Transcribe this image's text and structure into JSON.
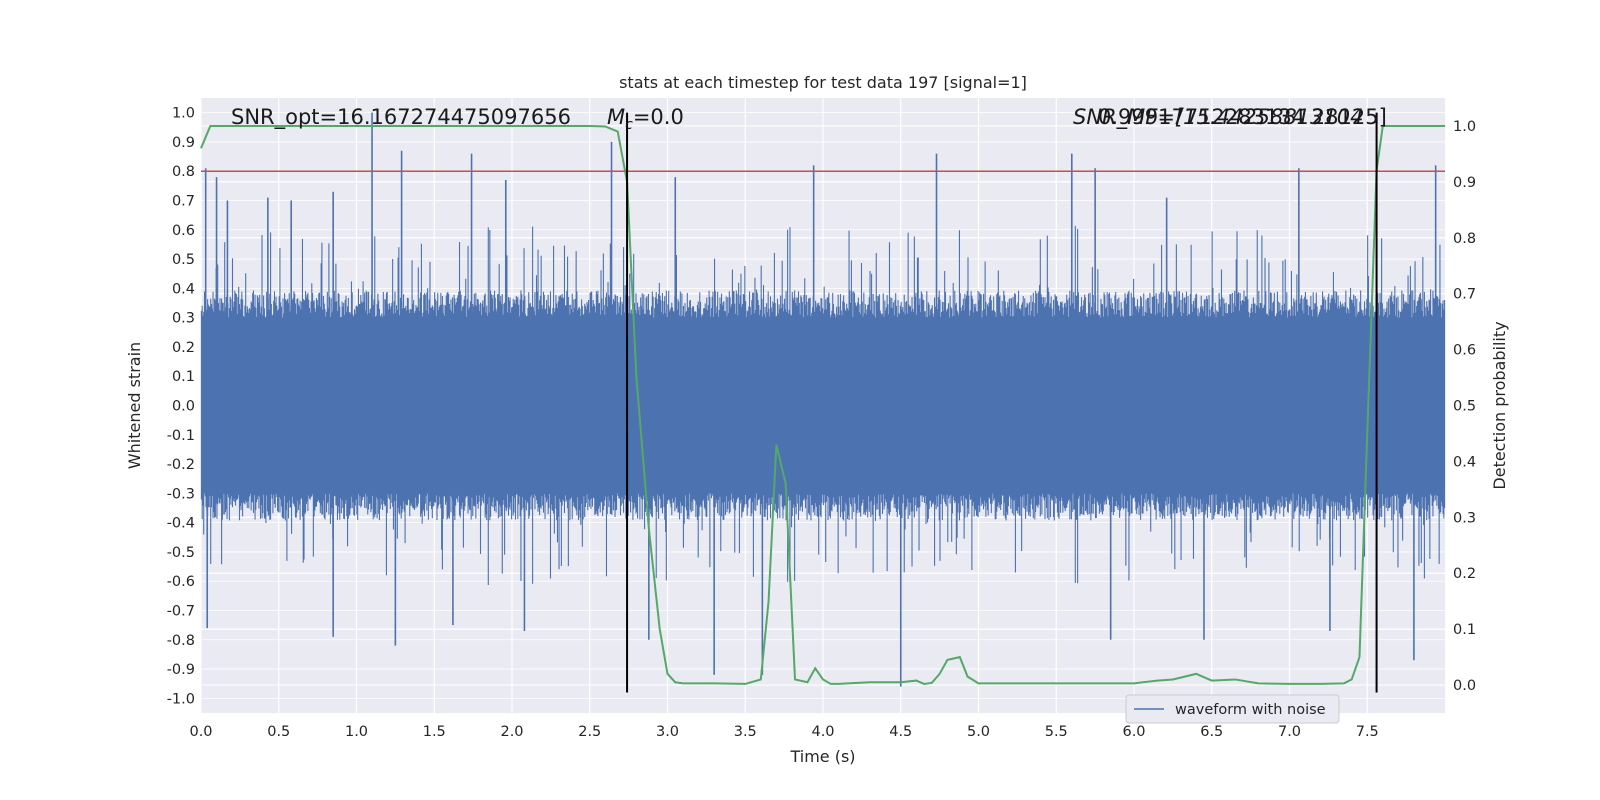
{
  "chart_data": {
    "type": "line",
    "title": "stats at each timestep for test data 197 [signal=1]",
    "xlabel": "Time (s)",
    "ylabel_left": "Whitened strain",
    "ylabel_right": "Detection probability",
    "xlim": [
      0.0,
      8.0
    ],
    "ylim_left": [
      -1.05,
      1.05
    ],
    "ylim_right": [
      -0.05,
      1.05
    ],
    "grid": true,
    "legend_position": "lower-right",
    "x_ticks": [
      "0.0",
      "0.5",
      "1.0",
      "1.5",
      "2.0",
      "2.5",
      "3.0",
      "3.5",
      "4.0",
      "4.5",
      "5.0",
      "5.5",
      "6.0",
      "6.5",
      "7.0",
      "7.5"
    ],
    "y_left_ticks": [
      "1.0",
      "0.9",
      "0.8",
      "0.7",
      "0.6",
      "0.5",
      "0.4",
      "0.3",
      "0.2",
      "0.1",
      "0.0",
      "-0.1",
      "-0.2",
      "-0.3",
      "-0.4",
      "-0.5",
      "-0.6",
      "-0.7",
      "-0.8",
      "-0.9",
      "-1.0"
    ],
    "y_right_ticks": [
      "1.0",
      "0.9",
      "0.8",
      "0.7",
      "0.6",
      "0.5",
      "0.4",
      "0.3",
      "0.2",
      "0.1",
      "0.0"
    ],
    "annotations": {
      "snr_opt": "SNR_opt=16.167274475097656",
      "mc": "=0.0",
      "mc_symbol": "M",
      "mc_sub": "c",
      "overlap_text_a": "SNR_MF=[15.44258813104",
      "overlap_text_b": "0.99917712283134 28125]"
    },
    "threshold": {
      "name": "threshold line",
      "value": 0.8,
      "color": "#c44e52"
    },
    "markers": [
      {
        "name": "signal-start-marker",
        "x": 2.74
      },
      {
        "name": "signal-end-marker",
        "x": 7.56
      }
    ],
    "series": [
      {
        "name": "waveform with noise",
        "axis": "left",
        "color": "#4c72b0",
        "style": "noisy band, typical envelope ±0.33, peaks to ±1.0",
        "spikes": [
          {
            "x": 0.03,
            "y": 0.81
          },
          {
            "x": 0.1,
            "y": 0.78
          },
          {
            "x": 0.17,
            "y": 0.7
          },
          {
            "x": 0.43,
            "y": 0.71
          },
          {
            "x": 0.58,
            "y": 0.7
          },
          {
            "x": 0.85,
            "y": 0.73
          },
          {
            "x": 1.1,
            "y": 1.0
          },
          {
            "x": 1.29,
            "y": 0.87
          },
          {
            "x": 1.74,
            "y": 0.86
          },
          {
            "x": 1.96,
            "y": 0.77
          },
          {
            "x": 2.64,
            "y": 0.9
          },
          {
            "x": 3.05,
            "y": 0.78
          },
          {
            "x": 3.94,
            "y": 0.82
          },
          {
            "x": 4.73,
            "y": 0.86
          },
          {
            "x": 5.6,
            "y": 0.86
          },
          {
            "x": 5.75,
            "y": 0.81
          },
          {
            "x": 6.21,
            "y": 0.71
          },
          {
            "x": 7.06,
            "y": 0.81
          },
          {
            "x": 7.94,
            "y": 0.82
          },
          {
            "x": 0.04,
            "y": -0.76
          },
          {
            "x": 0.85,
            "y": -0.79
          },
          {
            "x": 1.25,
            "y": -0.82
          },
          {
            "x": 1.62,
            "y": -0.75
          },
          {
            "x": 2.08,
            "y": -0.77
          },
          {
            "x": 2.88,
            "y": -0.8
          },
          {
            "x": 3.3,
            "y": -0.92
          },
          {
            "x": 3.61,
            "y": -0.92
          },
          {
            "x": 4.5,
            "y": -0.96
          },
          {
            "x": 5.85,
            "y": -0.8
          },
          {
            "x": 6.45,
            "y": -0.8
          },
          {
            "x": 7.26,
            "y": -0.77
          },
          {
            "x": 7.8,
            "y": -0.87
          }
        ]
      },
      {
        "name": "detection probability",
        "axis": "right",
        "color": "#55a868",
        "x": [
          0.0,
          0.06,
          0.2,
          0.5,
          1.0,
          1.5,
          2.0,
          2.3,
          2.5,
          2.6,
          2.68,
          2.74,
          2.8,
          2.88,
          2.95,
          3.0,
          3.05,
          3.1,
          3.3,
          3.5,
          3.6,
          3.65,
          3.7,
          3.76,
          3.82,
          3.9,
          3.95,
          4.0,
          4.05,
          4.1,
          4.3,
          4.5,
          4.6,
          4.65,
          4.7,
          4.75,
          4.8,
          4.88,
          4.93,
          5.0,
          5.5,
          6.0,
          6.15,
          6.25,
          6.4,
          6.5,
          6.65,
          6.8,
          7.0,
          7.2,
          7.35,
          7.4,
          7.45,
          7.5,
          7.56,
          7.6,
          7.65,
          7.7,
          7.8,
          8.0
        ],
        "y": [
          0.96,
          1.0,
          1.0,
          1.0,
          1.0,
          1.0,
          1.0,
          1.0,
          1.0,
          0.999,
          0.99,
          0.9,
          0.55,
          0.28,
          0.1,
          0.02,
          0.005,
          0.003,
          0.003,
          0.002,
          0.01,
          0.15,
          0.43,
          0.36,
          0.01,
          0.005,
          0.03,
          0.01,
          0.002,
          0.002,
          0.005,
          0.005,
          0.008,
          0.002,
          0.004,
          0.02,
          0.045,
          0.05,
          0.015,
          0.003,
          0.003,
          0.003,
          0.008,
          0.01,
          0.02,
          0.008,
          0.01,
          0.003,
          0.002,
          0.002,
          0.003,
          0.01,
          0.05,
          0.45,
          0.92,
          1.0,
          1.0,
          1.0,
          1.0,
          1.0
        ]
      }
    ]
  }
}
